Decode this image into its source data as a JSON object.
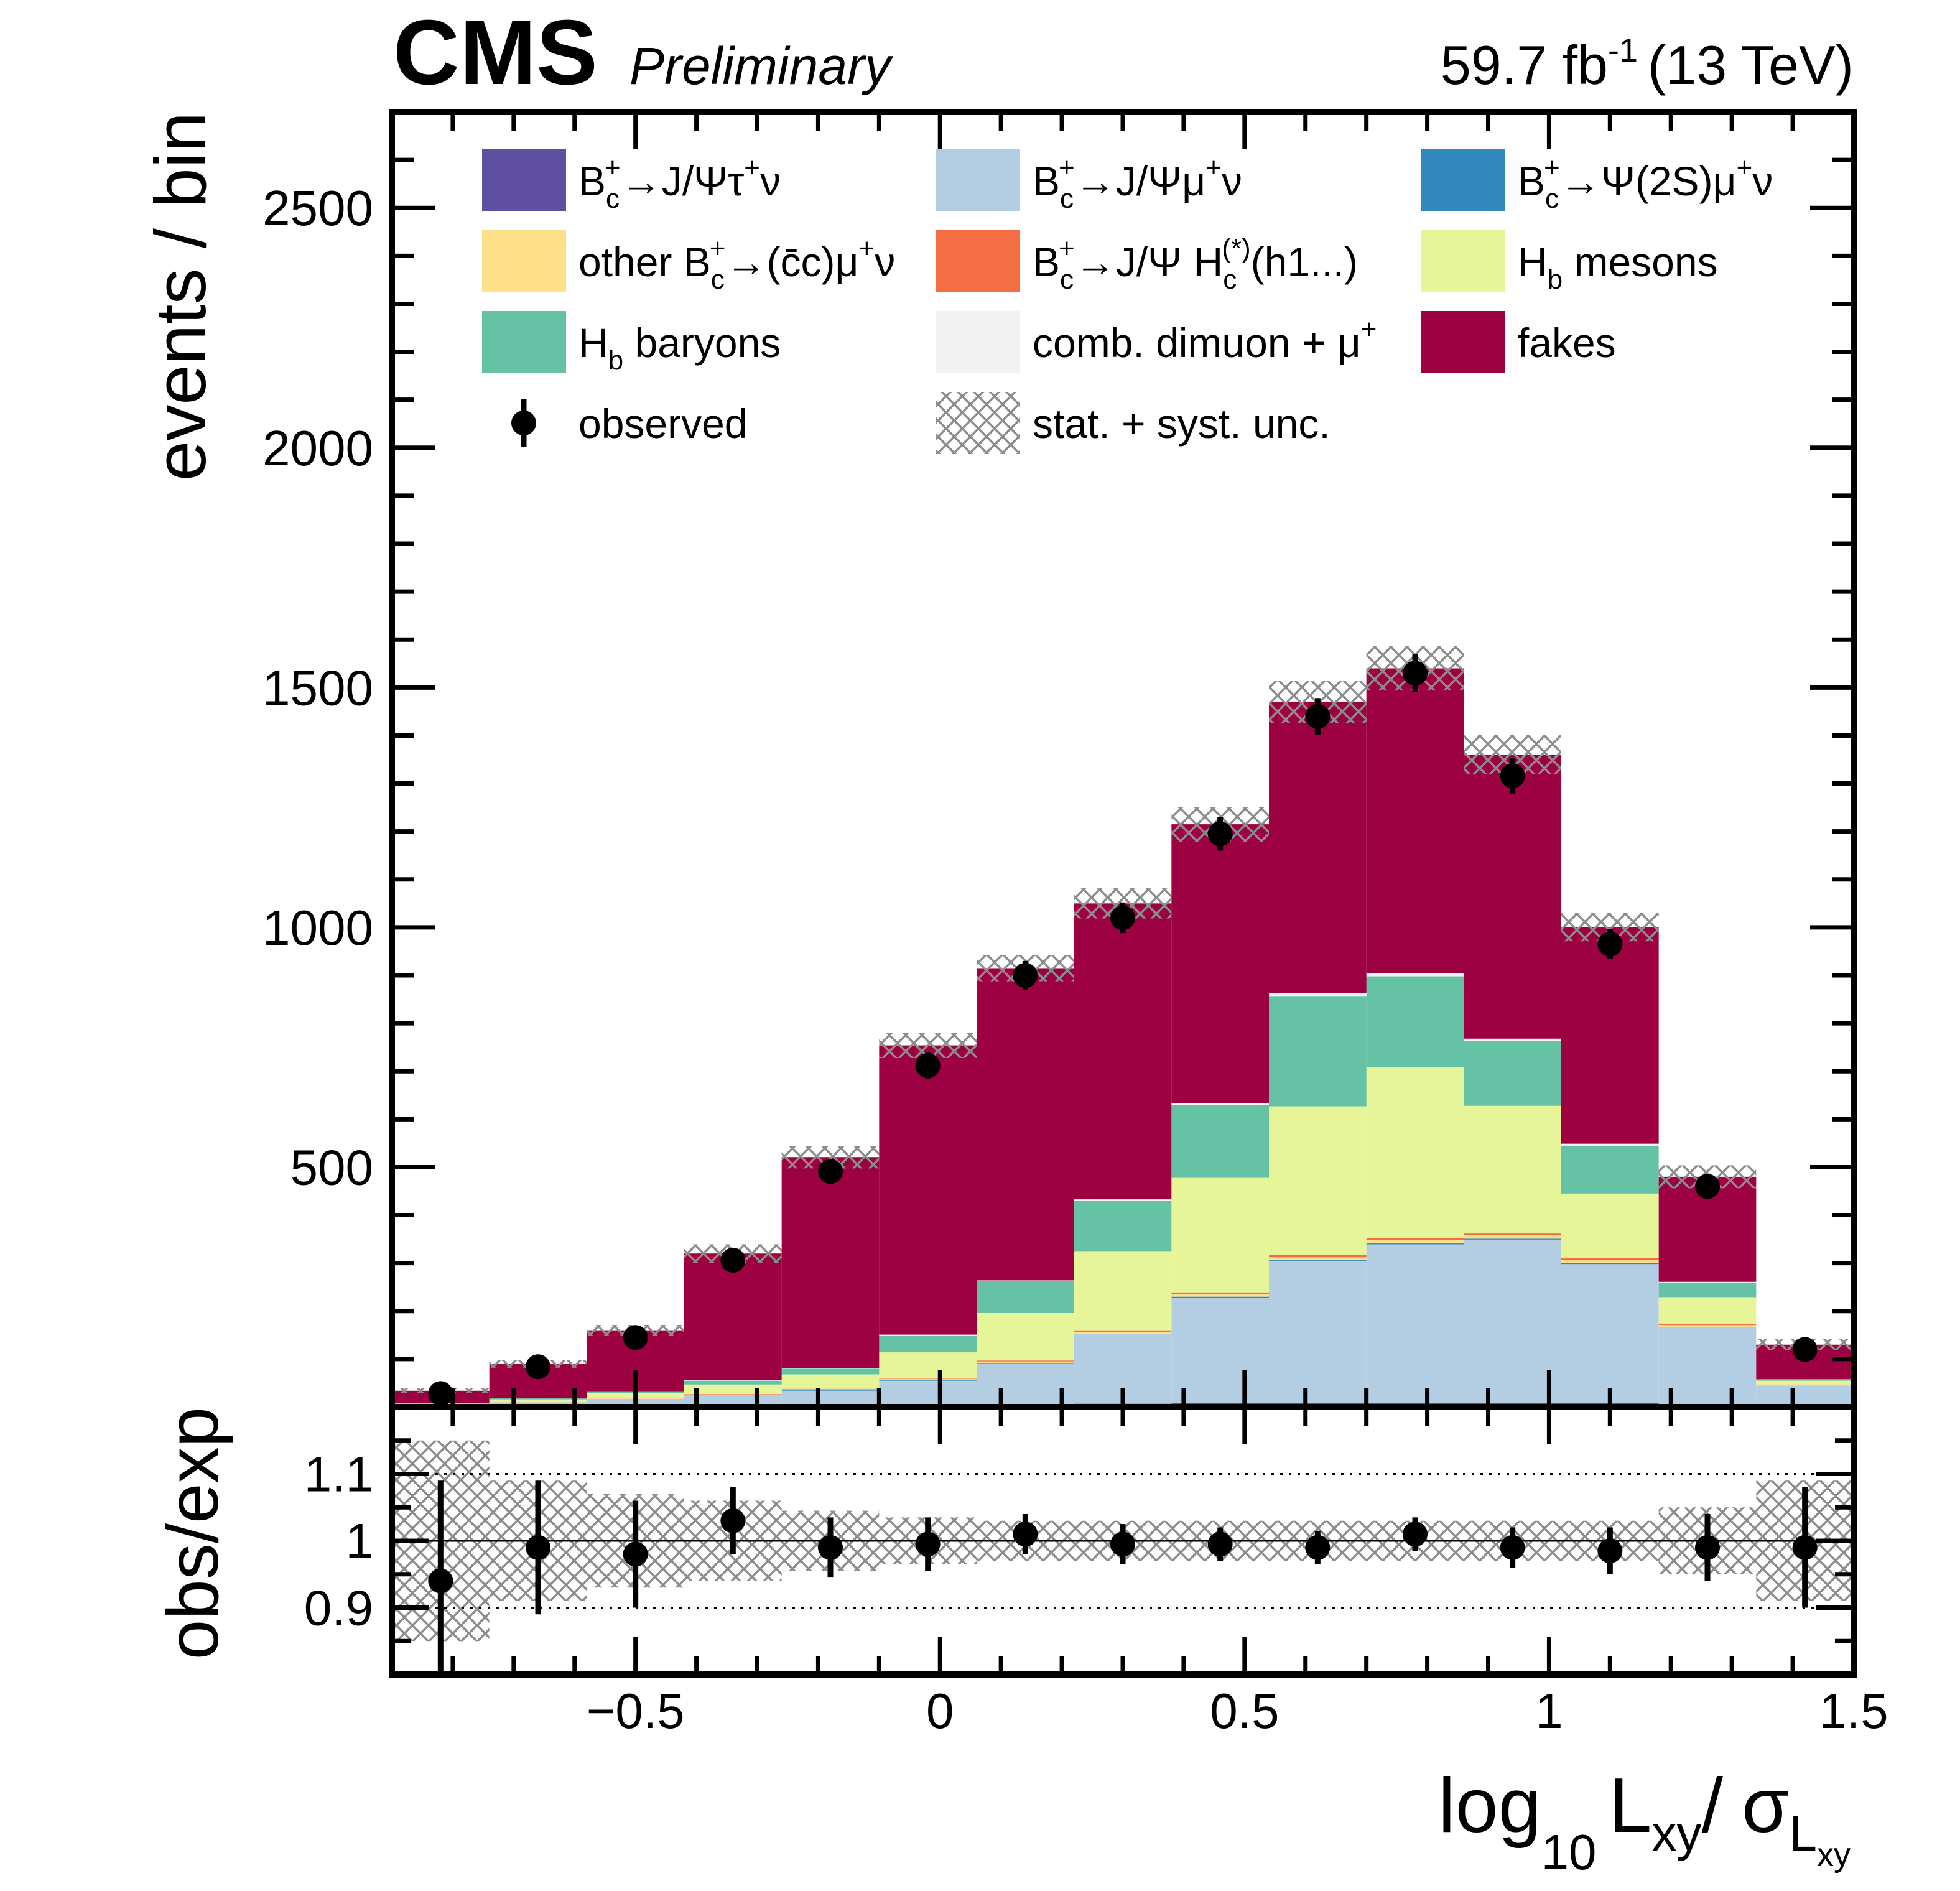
{
  "header": {
    "experiment": "CMS",
    "status": "Preliminary",
    "luminosity_value": "59.7 fb",
    "luminosity_exponent": "-1",
    "energy": "(13 TeV)"
  },
  "axes": {
    "ylabel_main": "events / bin",
    "ylabel_ratio": "obs/exp",
    "xlabel": {
      "base": "log",
      "base_sub": "10",
      "var": "L",
      "var_sub": "xy",
      "slash": "/",
      "sigma": "σ",
      "sigma_sub": "L",
      "sigma_subsub": "xy"
    }
  },
  "legend": [
    {
      "key": "bc_jpsi_tau",
      "swatch": "fill",
      "color": "#5e4fa2",
      "text": [
        {
          "t": "B"
        },
        {
          "t": "c",
          "sub": true
        },
        {
          "t": "+",
          "sup": true
        },
        {
          "t": "→J/Ψτ"
        },
        {
          "t": "+",
          "sup": true
        },
        {
          "t": "ν"
        }
      ]
    },
    {
      "key": "bc_jpsi_mu",
      "swatch": "fill",
      "color": "#b3cde3",
      "text": [
        {
          "t": "B"
        },
        {
          "t": "c",
          "sub": true
        },
        {
          "t": "+",
          "sup": true
        },
        {
          "t": "→J/Ψμ"
        },
        {
          "t": "+",
          "sup": true
        },
        {
          "t": "ν"
        }
      ]
    },
    {
      "key": "bc_psi2s_mu",
      "swatch": "fill",
      "color": "#3288bd",
      "text": [
        {
          "t": "B"
        },
        {
          "t": "c",
          "sub": true
        },
        {
          "t": "+",
          "sup": true
        },
        {
          "t": "→Ψ(2S)μ"
        },
        {
          "t": "+",
          "sup": true
        },
        {
          "t": "ν"
        }
      ]
    },
    {
      "key": "other_bc",
      "swatch": "fill",
      "color": "#fee08b",
      "text": [
        {
          "t": "other B"
        },
        {
          "t": "c",
          "sub": true
        },
        {
          "t": "+",
          "sup": true
        },
        {
          "t": "→(c̄c)μ"
        },
        {
          "t": "+",
          "sup": true
        },
        {
          "t": "ν"
        }
      ]
    },
    {
      "key": "bc_jpsi_hc",
      "swatch": "fill",
      "color": "#f46d43",
      "text": [
        {
          "t": "B"
        },
        {
          "t": "c",
          "sub": true
        },
        {
          "t": "+",
          "sup": true
        },
        {
          "t": "→J/Ψ H"
        },
        {
          "t": "c",
          "sub": true
        },
        {
          "t": "(*)",
          "sup": true
        },
        {
          "t": "(h1...)"
        }
      ]
    },
    {
      "key": "hb_mesons",
      "swatch": "fill",
      "color": "#e6f598",
      "text": [
        {
          "t": "H"
        },
        {
          "t": "b",
          "sub": true
        },
        {
          "t": " mesons"
        }
      ]
    },
    {
      "key": "hb_baryons",
      "swatch": "fill",
      "color": "#66c2a5",
      "text": [
        {
          "t": "H"
        },
        {
          "t": "b",
          "sub": true
        },
        {
          "t": " baryons"
        }
      ]
    },
    {
      "key": "comb_dimuon",
      "swatch": "fill",
      "color": "#f2f2f2",
      "text": [
        {
          "t": "comb. dimuon + μ"
        },
        {
          "t": "+",
          "sup": true
        }
      ]
    },
    {
      "key": "fakes",
      "swatch": "fill",
      "color": "#9e0142",
      "text": [
        {
          "t": "fakes"
        }
      ]
    },
    {
      "key": "observed",
      "swatch": "marker",
      "color": "#000000",
      "text": [
        {
          "t": "observed"
        }
      ]
    },
    {
      "key": "unc",
      "swatch": "hatch",
      "color": "#999999",
      "text": [
        {
          "t": "stat. + syst. unc."
        }
      ]
    }
  ],
  "chart_data": {
    "type": "bar",
    "stacked": true,
    "xlim": [
      -0.9,
      1.5
    ],
    "ylim": [
      0,
      2700
    ],
    "x_ticks": [
      -0.5,
      0,
      0.5,
      1,
      1.5
    ],
    "x_tick_labels": [
      "−0.5",
      "0",
      "0.5",
      "1",
      "1.5"
    ],
    "y_ticks": [
      500,
      1000,
      1500,
      2000,
      2500
    ],
    "y_tick_labels": [
      "500",
      "1000",
      "1500",
      "2000",
      "2500"
    ],
    "bin_edges": [
      -0.9,
      -0.74,
      -0.58,
      -0.42,
      -0.26,
      -0.1,
      0.06,
      0.22,
      0.38,
      0.54,
      0.7,
      0.86,
      1.02,
      1.18,
      1.34,
      1.5
    ],
    "series": [
      {
        "key": "bc_jpsi_tau",
        "color": "#5e4fa2",
        "values": [
          1,
          2,
          2,
          3,
          4,
          5,
          6,
          7,
          8,
          9,
          9,
          9,
          8,
          6,
          3
        ]
      },
      {
        "key": "bc_jpsi_mu",
        "color": "#b3cde3",
        "values": [
          3,
          8,
          15,
          22,
          30,
          50,
          85,
          145,
          220,
          295,
          330,
          340,
          290,
          160,
          42
        ]
      },
      {
        "key": "bc_psi2s_mu",
        "color": "#3288bd",
        "values": [
          0,
          0,
          0,
          0,
          1,
          1,
          1,
          1,
          2,
          2,
          2,
          2,
          2,
          1,
          0
        ]
      },
      {
        "key": "other_bc",
        "color": "#fee08b",
        "values": [
          0,
          1,
          1,
          1,
          2,
          2,
          3,
          4,
          5,
          6,
          7,
          7,
          6,
          4,
          1
        ]
      },
      {
        "key": "bc_jpsi_hc",
        "color": "#f46d43",
        "values": [
          0,
          0,
          1,
          1,
          1,
          1,
          2,
          3,
          4,
          5,
          5,
          5,
          4,
          3,
          1
        ]
      },
      {
        "key": "hb_mesons",
        "color": "#e6f598",
        "values": [
          3,
          5,
          10,
          20,
          30,
          55,
          100,
          165,
          240,
          310,
          355,
          265,
          135,
          55,
          8
        ]
      },
      {
        "key": "hb_baryons",
        "color": "#66c2a5",
        "values": [
          1,
          2,
          4,
          8,
          12,
          35,
          65,
          105,
          150,
          230,
          190,
          135,
          100,
          30,
          3
        ]
      },
      {
        "key": "comb_dimuon",
        "color": "#f2f2f2",
        "values": [
          0,
          0,
          0,
          1,
          1,
          2,
          2,
          3,
          5,
          6,
          6,
          5,
          4,
          2,
          0
        ]
      },
      {
        "key": "fakes",
        "color": "#9e0142",
        "values": [
          26,
          72,
          127,
          264,
          440,
          603,
          651,
          617,
          581,
          607,
          636,
          592,
          452,
          219,
          72
        ]
      }
    ],
    "observed": {
      "x": [
        -0.82,
        -0.66,
        -0.5,
        -0.34,
        -0.18,
        -0.02,
        0.14,
        0.3,
        0.46,
        0.62,
        0.78,
        0.94,
        1.1,
        1.26,
        1.42
      ],
      "y": [
        28,
        84,
        145,
        306,
        491,
        712,
        900,
        1020,
        1195,
        1440,
        1530,
        1316,
        965,
        460,
        120
      ],
      "err": [
        6,
        10,
        13,
        18,
        23,
        27,
        30,
        32,
        35,
        38,
        40,
        37,
        31,
        22,
        12
      ]
    },
    "unc_rel": [
      0.15,
      0.09,
      0.07,
      0.06,
      0.045,
      0.035,
      0.03,
      0.03,
      0.03,
      0.03,
      0.03,
      0.03,
      0.03,
      0.05,
      0.09
    ],
    "ratio": {
      "ylim": [
        0.8,
        1.2
      ],
      "y_ticks": [
        0.9,
        1,
        1.1
      ],
      "y_tick_labels": [
        "0.9",
        "1",
        "1.1"
      ],
      "y": [
        0.94,
        0.99,
        0.98,
        1.03,
        0.99,
        0.995,
        1.01,
        0.995,
        0.995,
        0.99,
        1.01,
        0.99,
        0.985,
        0.99,
        0.99
      ],
      "err": [
        0.15,
        0.1,
        0.08,
        0.05,
        0.045,
        0.04,
        0.03,
        0.03,
        0.025,
        0.025,
        0.025,
        0.03,
        0.035,
        0.05,
        0.09
      ]
    }
  }
}
